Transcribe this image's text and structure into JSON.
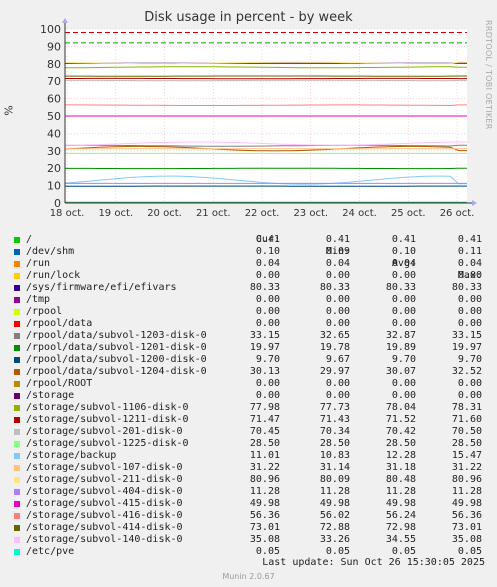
{
  "title": "Disk usage in percent - by week",
  "side_credit": "RRDTOOL / TOBI OETIKER",
  "footer": "Munin 2.0.67",
  "last_update": "Last update: Sun Oct 26 15:30:05 2025",
  "legend_headers": [
    "Cur:",
    "Min:",
    "Avg:",
    "Max:"
  ],
  "chart_data": {
    "type": "line",
    "ylabel": "%",
    "ylim": [
      0,
      100
    ],
    "yticks": [
      0,
      10,
      20,
      30,
      40,
      50,
      60,
      70,
      80,
      90,
      100
    ],
    "x_tick_labels": [
      "18 oct.",
      "19 oct.",
      "20 oct.",
      "21 oct.",
      "22 oct.",
      "23 oct.",
      "24 oct.",
      "25 oct.",
      "26 oct."
    ],
    "thresholds": [
      {
        "value": 92,
        "color": "#00aa00"
      },
      {
        "value": 98,
        "color": "#cc0000"
      }
    ],
    "series": [
      {
        "name": "/",
        "color": "#00cc00",
        "cur": "0.41",
        "min": "0.41",
        "avg": "0.41",
        "max": "0.41"
      },
      {
        "name": "/dev/shm",
        "color": "#0066b3",
        "cur": "0.10",
        "min": "0.09",
        "avg": "0.10",
        "max": "0.11"
      },
      {
        "name": "/run",
        "color": "#ff8000",
        "cur": "0.04",
        "min": "0.04",
        "avg": "0.04",
        "max": "0.04"
      },
      {
        "name": "/run/lock",
        "color": "#ffcc00",
        "cur": "0.00",
        "min": "0.00",
        "avg": "0.00",
        "max": "0.00"
      },
      {
        "name": "/sys/firmware/efi/efivars",
        "color": "#330099",
        "cur": "80.33",
        "min": "80.33",
        "avg": "80.33",
        "max": "80.33"
      },
      {
        "name": "/tmp",
        "color": "#990099",
        "cur": "0.00",
        "min": "0.00",
        "avg": "0.00",
        "max": "0.00"
      },
      {
        "name": "/rpool",
        "color": "#ccff00",
        "cur": "0.00",
        "min": "0.00",
        "avg": "0.00",
        "max": "0.00"
      },
      {
        "name": "/rpool/data",
        "color": "#ff0000",
        "cur": "0.00",
        "min": "0.00",
        "avg": "0.00",
        "max": "0.00"
      },
      {
        "name": "/rpool/data/subvol-1203-disk-0",
        "color": "#808080",
        "cur": "33.15",
        "min": "32.65",
        "avg": "32.87",
        "max": "33.15"
      },
      {
        "name": "/rpool/data/subvol-1201-disk-0",
        "color": "#008f00",
        "cur": "19.97",
        "min": "19.78",
        "avg": "19.89",
        "max": "19.97"
      },
      {
        "name": "/rpool/data/subvol-1200-disk-0",
        "color": "#00487d",
        "cur": "9.70",
        "min": "9.67",
        "avg": "9.70",
        "max": "9.70"
      },
      {
        "name": "/rpool/data/subvol-1204-disk-0",
        "color": "#b35a00",
        "cur": "30.13",
        "min": "29.97",
        "avg": "30.07",
        "max": "32.52"
      },
      {
        "name": "/rpool/ROOT",
        "color": "#b38f00",
        "cur": "0.00",
        "min": "0.00",
        "avg": "0.00",
        "max": "0.00"
      },
      {
        "name": "/storage",
        "color": "#6b006b",
        "cur": "0.00",
        "min": "0.00",
        "avg": "0.00",
        "max": "0.00"
      },
      {
        "name": "/storage/subvol-1106-disk-0",
        "color": "#8fb300",
        "cur": "77.98",
        "min": "77.73",
        "avg": "78.04",
        "max": "78.31"
      },
      {
        "name": "/storage/subvol-1211-disk-0",
        "color": "#b30000",
        "cur": "71.47",
        "min": "71.43",
        "avg": "71.52",
        "max": "71.60"
      },
      {
        "name": "/storage/subvol-201-disk-0",
        "color": "#bebebe",
        "cur": "70.45",
        "min": "70.34",
        "avg": "70.42",
        "max": "70.50"
      },
      {
        "name": "/storage/subvol-1225-disk-0",
        "color": "#80ff80",
        "cur": "28.50",
        "min": "28.50",
        "avg": "28.50",
        "max": "28.50"
      },
      {
        "name": "/storage/backup",
        "color": "#80c9ff",
        "cur": "11.01",
        "min": "10.83",
        "avg": "12.28",
        "max": "15.47"
      },
      {
        "name": "/storage/subvol-107-disk-0",
        "color": "#ffc080",
        "cur": "31.22",
        "min": "31.14",
        "avg": "31.18",
        "max": "31.22"
      },
      {
        "name": "/storage/subvol-211-disk-0",
        "color": "#ffe680",
        "cur": "80.96",
        "min": "80.09",
        "avg": "80.48",
        "max": "80.96"
      },
      {
        "name": "/storage/subvol-404-disk-0",
        "color": "#aa80ff",
        "cur": "11.28",
        "min": "11.28",
        "avg": "11.28",
        "max": "11.28"
      },
      {
        "name": "/storage/subvol-415-disk-0",
        "color": "#ee00cc",
        "cur": "49.98",
        "min": "49.98",
        "avg": "49.98",
        "max": "49.98"
      },
      {
        "name": "/storage/subvol-416-disk-0",
        "color": "#ff8080",
        "cur": "56.36",
        "min": "56.02",
        "avg": "56.24",
        "max": "56.36"
      },
      {
        "name": "/storage/subvol-414-disk-0",
        "color": "#666600",
        "cur": "73.01",
        "min": "72.88",
        "avg": "72.98",
        "max": "73.01"
      },
      {
        "name": "/storage/subvol-140-disk-0",
        "color": "#ffbfff",
        "cur": "35.08",
        "min": "33.26",
        "avg": "34.55",
        "max": "35.08"
      },
      {
        "name": "/etc/pve",
        "color": "#00ffcc",
        "cur": "0.05",
        "min": "0.05",
        "avg": "0.05",
        "max": "0.05"
      }
    ]
  }
}
